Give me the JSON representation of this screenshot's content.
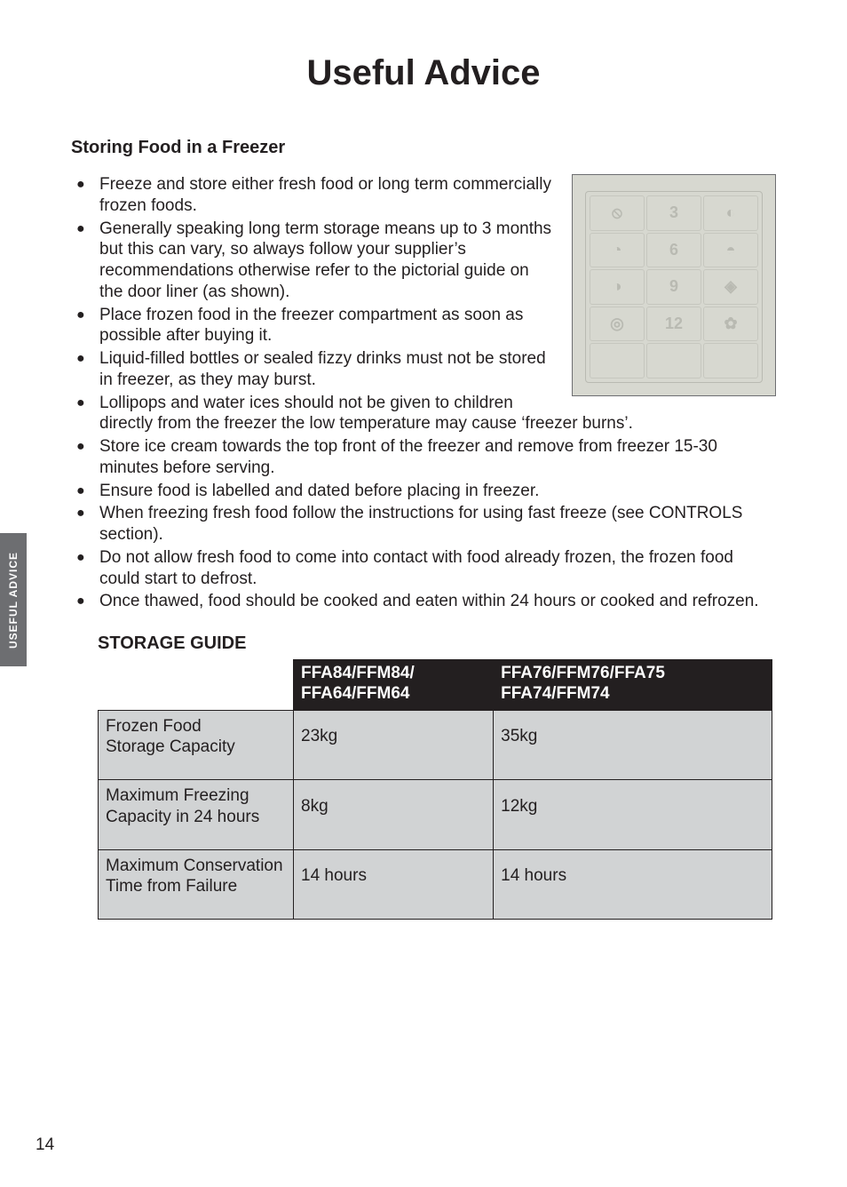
{
  "page": {
    "title": "Useful Advice",
    "side_tab": "USEFUL  ADVICE",
    "page_number": "14"
  },
  "section": {
    "heading": "Storing Food in a Freezer",
    "bullets": [
      "Freeze and store either fresh food or long term commercially frozen foods.",
      "Generally speaking long term storage means up to 3 months but this can vary, so always follow your supplier’s recommendations otherwise refer to the pictorial guide on the door liner (as shown).",
      "Place frozen food in the freezer compartment as soon as possible after buying it.",
      "Liquid-filled bottles or sealed fizzy drinks must not be stored in freezer, as they may burst.",
      "Lollipops and water ices should not be given to children directly from the freezer the low temperature may cause ‘freezer burns’.",
      "Store ice cream towards the top front of the freezer and remove from freezer 15-30 minutes before serving.",
      "Ensure food is labelled and dated before placing in freezer.",
      "When freezing fresh food follow the instructions for using fast freeze (see CONTROLS section).",
      "Do not allow fresh food to come into contact with food already frozen, the frozen food could start to defrost.",
      "Once thawed, food should be cooked and eaten within 24 hours or cooked and refrozen."
    ]
  },
  "liner": {
    "cells": [
      "⦸",
      "3",
      "◐",
      "◔",
      "6",
      "◓",
      "◑",
      "9",
      "◈",
      "◎",
      "12",
      "✿",
      "",
      "",
      ""
    ]
  },
  "storage_table": {
    "title": "STORAGE GUIDE",
    "columns": [
      "",
      "FFA84/FFM84/\nFFA64/FFM64",
      "FFA76/FFM76/FFA75\nFFA74/FFM74"
    ],
    "rows": [
      [
        "Frozen Food\nStorage Capacity",
        "23kg",
        "35kg"
      ],
      [
        "Maximum Freezing\nCapacity in 24 hours",
        "8kg",
        "12kg"
      ],
      [
        "Maximum Conservation\nTime from Failure",
        "14 hours",
        "14 hours"
      ]
    ],
    "colors": {
      "header_bg": "#231f20",
      "header_fg": "#ffffff",
      "cell_bg": "#d1d3d4",
      "border": "#231f20"
    }
  }
}
